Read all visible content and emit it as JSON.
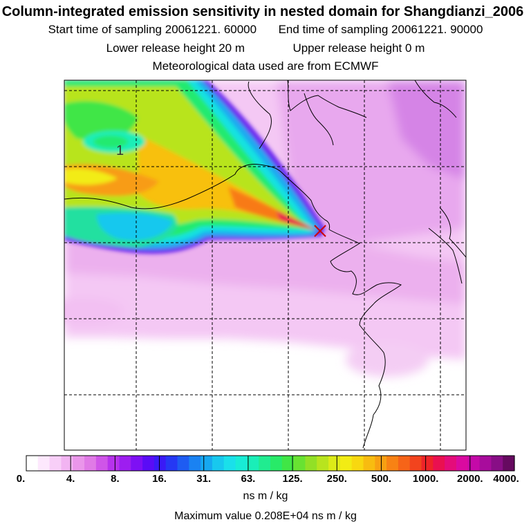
{
  "header": {
    "title": "Column-integrated emission sensitivity in nested domain for Shangdianzi_2006",
    "start_label": "Start time of sampling",
    "start_value": "20061221. 60000",
    "end_label": "End time of sampling",
    "end_value": "20061221. 90000",
    "lower_label": "Lower release height",
    "lower_value": "20 m",
    "upper_label": "Upper release height",
    "upper_value": "0 m",
    "met_line": "Meteorological data used are from ECMWF"
  },
  "map": {
    "contour_label": "1",
    "receptor_marker": "x-marker"
  },
  "colorbar": {
    "tick_labels": [
      "0.",
      "4.",
      "8.",
      "16.",
      "31.",
      "63.",
      "125.",
      "250.",
      "500.",
      "1000.",
      "2000.",
      "4000."
    ],
    "colors": [
      "#ffffff",
      "#fde8fd",
      "#f8cff8",
      "#f2b4f2",
      "#ea96ea",
      "#e07ae6",
      "#cf55e8",
      "#b732ec",
      "#9d1ef0",
      "#7e10f4",
      "#5a0cf6",
      "#3a1af6",
      "#2538f4",
      "#1e5cf2",
      "#1a82f2",
      "#16a8f0",
      "#18c8ee",
      "#1ae0ea",
      "#18ecd6",
      "#1aeeb8",
      "#20ec90",
      "#28ea68",
      "#40e646",
      "#68e232",
      "#92e026",
      "#b8e41e",
      "#dcea18",
      "#f2ec14",
      "#f8d810",
      "#f8bc10",
      "#f8a012",
      "#f88214",
      "#f66418",
      "#f2441e",
      "#ee2428",
      "#ea1050",
      "#e40c7a",
      "#da0aa0",
      "#c40aa8",
      "#a80c9c",
      "#880e86",
      "#660a60"
    ],
    "units": "ns m / kg",
    "max_value": "Maximum value  0.208E+04 ns m / kg"
  }
}
